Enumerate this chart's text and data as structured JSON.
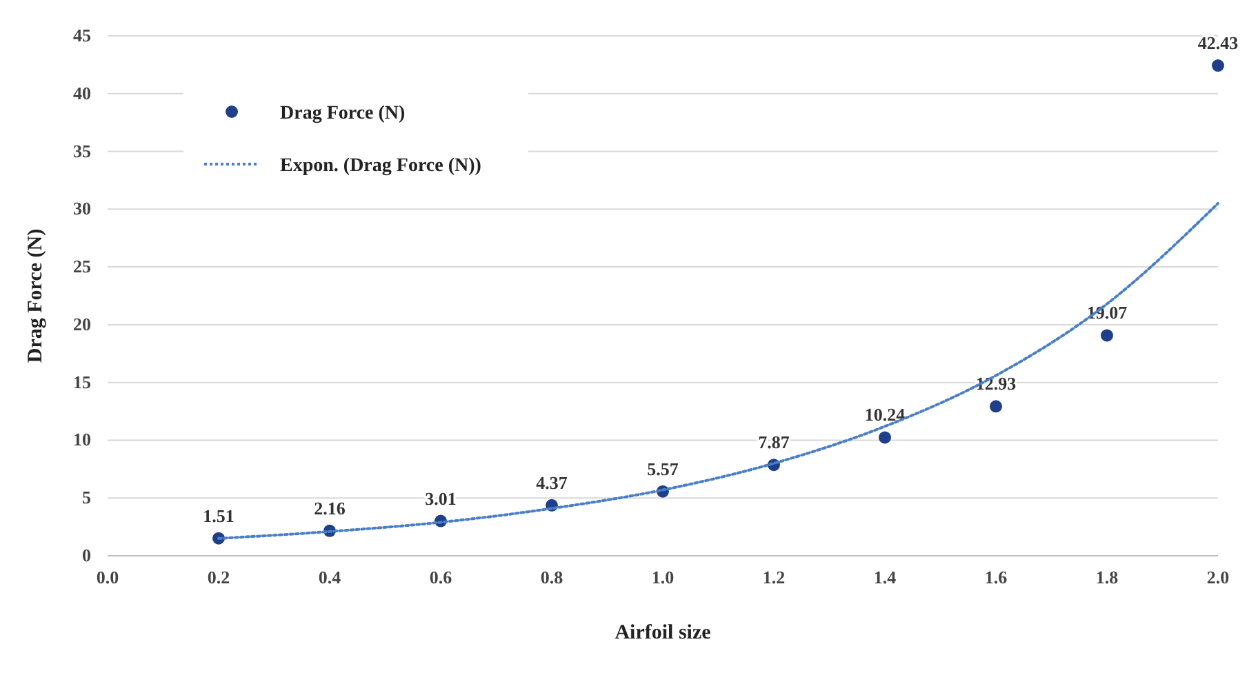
{
  "chart_data": {
    "type": "scatter",
    "xlabel": "Airfoil size",
    "ylabel": "Drag Force (N)",
    "xlim": [
      0,
      2
    ],
    "xticks": [
      {
        "value": 0,
        "label": "0.0"
      },
      {
        "value": 0.2,
        "label": "0.2"
      },
      {
        "value": 0.4,
        "label": "0.4"
      },
      {
        "value": 0.6,
        "label": "0.6"
      },
      {
        "value": 0.8,
        "label": "0.8"
      },
      {
        "value": 1,
        "label": "1.0"
      },
      {
        "value": 1.2,
        "label": "1.2"
      },
      {
        "value": 1.4,
        "label": "1.4"
      },
      {
        "value": 1.6,
        "label": "1.6"
      },
      {
        "value": 1.8,
        "label": "1.8"
      },
      {
        "value": 2,
        "label": "2.0"
      }
    ],
    "ylim": [
      0,
      45
    ],
    "yticks": [
      0,
      5,
      10,
      15,
      20,
      25,
      30,
      35,
      40,
      45
    ],
    "grid": "y",
    "legend": "top left",
    "series": [
      {
        "name": "Drag Force (N)",
        "color": "#1f3f8a",
        "marker": "circle",
        "data_labels": true,
        "x": [
          0.2,
          0.4,
          0.6,
          0.8,
          1,
          1.2,
          1.4,
          1.6,
          1.8,
          2
        ],
        "values": [
          1.51,
          2.16,
          3.01,
          4.37,
          5.57,
          7.87,
          10.24,
          12.93,
          19.07,
          42.43
        ]
      },
      {
        "name": "Expon. (Drag Force (N))",
        "type": "line",
        "color": "#4a7fc8",
        "line_style": "dotted",
        "marker": "none",
        "x": [
          0.2,
          0.4,
          0.6,
          0.8,
          1,
          1.2,
          1.4,
          1.6,
          1.8,
          2
        ],
        "values": [
          1.5,
          2.1,
          2.9,
          4.1,
          5.7,
          8.0,
          11.2,
          15.6,
          21.8,
          30.5
        ]
      }
    ]
  }
}
